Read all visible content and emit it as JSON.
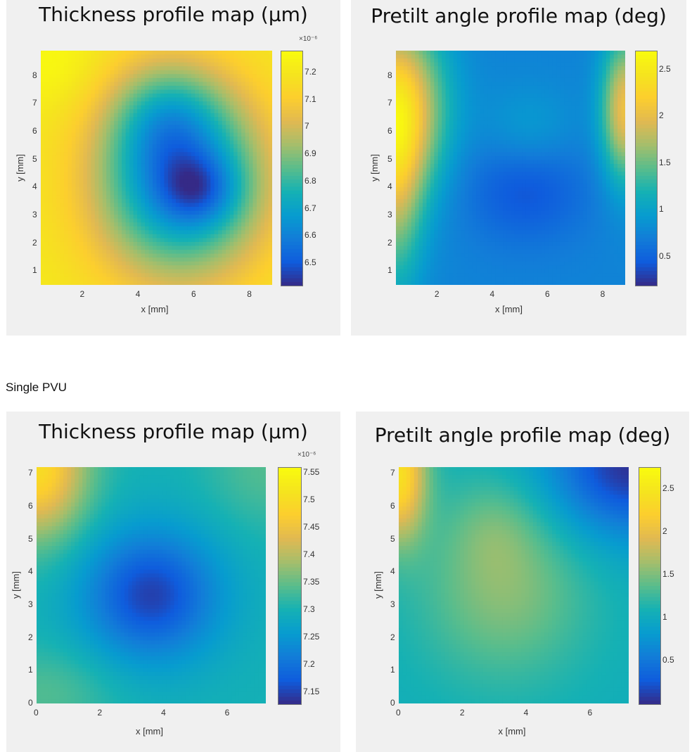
{
  "section_label": "Single PVU",
  "chart_data": [
    {
      "type": "heatmap",
      "title": "Thickness profile map (µm)",
      "xlabel": "x [mm]",
      "ylabel": "y [mm]",
      "xlim": [
        0.5,
        8.8
      ],
      "ylim": [
        0.5,
        8.9
      ],
      "xticks": [
        "2",
        "4",
        "6",
        "8"
      ],
      "xtick_values": [
        2,
        4,
        6,
        8
      ],
      "yticks": [
        "1",
        "2",
        "3",
        "4",
        "5",
        "6",
        "7",
        "8"
      ],
      "ytick_values": [
        1,
        2,
        3,
        4,
        5,
        6,
        7,
        8
      ],
      "colorbar": {
        "range": [
          6.42,
          7.28
        ],
        "ticks": [
          "6.5",
          "6.6",
          "6.7",
          "6.8",
          "6.9",
          "7",
          "7.1",
          "7.2"
        ],
        "tick_values": [
          6.5,
          6.6,
          6.7,
          6.8,
          6.9,
          7.0,
          7.1,
          7.2
        ],
        "exponent": "×10⁻⁶"
      },
      "field": {
        "base": 7.22,
        "blobs": [
          {
            "x": 5.5,
            "y": 4.2,
            "sx": 2.2,
            "sy": 2.5,
            "amp": -0.62
          },
          {
            "x": 5.0,
            "y": 6.6,
            "sx": 1.4,
            "sy": 1.4,
            "amp": -0.2
          },
          {
            "x": 6.2,
            "y": 3.9,
            "sx": 1.0,
            "sy": 0.9,
            "amp": -0.18
          },
          {
            "x": 1.0,
            "y": 8.5,
            "sx": 1.2,
            "sy": 1.2,
            "amp": 0.06
          }
        ]
      }
    },
    {
      "type": "heatmap",
      "title": "Pretilt angle profile map (deg)",
      "xlabel": "x [mm]",
      "ylabel": "y [mm]",
      "xlim": [
        0.5,
        8.8
      ],
      "ylim": [
        0.5,
        8.9
      ],
      "xticks": [
        "2",
        "4",
        "6",
        "8"
      ],
      "xtick_values": [
        2,
        4,
        6,
        8
      ],
      "yticks": [
        "1",
        "2",
        "3",
        "4",
        "5",
        "6",
        "7",
        "8"
      ],
      "ytick_values": [
        1,
        2,
        3,
        4,
        5,
        6,
        7,
        8
      ],
      "colorbar": {
        "range": [
          0.2,
          2.7
        ],
        "ticks": [
          "0.5",
          "1",
          "1.5",
          "2",
          "2.5"
        ],
        "tick_values": [
          0.5,
          1.0,
          1.5,
          2.0,
          2.5
        ],
        "exponent": ""
      },
      "field": {
        "base": 0.75,
        "blobs": [
          {
            "x": 0.5,
            "y": 6.8,
            "sx": 1.2,
            "sy": 2.2,
            "amp": 1.6
          },
          {
            "x": 0.5,
            "y": 3.5,
            "sx": 0.7,
            "sy": 2.5,
            "amp": 0.7
          },
          {
            "x": 8.8,
            "y": 6.8,
            "sx": 0.6,
            "sy": 1.8,
            "amp": 1.3
          },
          {
            "x": 5.2,
            "y": 4.0,
            "sx": 1.6,
            "sy": 1.4,
            "amp": -0.35
          },
          {
            "x": 5.3,
            "y": 6.0,
            "sx": 1.2,
            "sy": 1.1,
            "amp": 0.25
          }
        ]
      }
    },
    {
      "type": "heatmap",
      "title": "Thickness profile map (µm)",
      "xlabel": "x [mm]",
      "ylabel": "y [mm]",
      "xlim": [
        0,
        7.2
      ],
      "ylim": [
        0,
        7.2
      ],
      "xticks": [
        "0",
        "2",
        "4",
        "6"
      ],
      "xtick_values": [
        0,
        2,
        4,
        6
      ],
      "yticks": [
        "0",
        "1",
        "2",
        "3",
        "4",
        "5",
        "6",
        "7"
      ],
      "ytick_values": [
        0,
        1,
        2,
        3,
        4,
        5,
        6,
        7
      ],
      "colorbar": {
        "range": [
          7.13,
          7.56
        ],
        "ticks": [
          "7.15",
          "7.2",
          "7.25",
          "7.3",
          "7.35",
          "7.4",
          "7.45",
          "7.5",
          "7.55"
        ],
        "tick_values": [
          7.15,
          7.2,
          7.25,
          7.3,
          7.35,
          7.4,
          7.45,
          7.5,
          7.55
        ],
        "exponent": "×10⁻⁶"
      },
      "field": {
        "base": 7.3,
        "blobs": [
          {
            "x": 3.6,
            "y": 3.3,
            "sx": 1.5,
            "sy": 1.4,
            "amp": -0.15
          },
          {
            "x": 0.0,
            "y": 7.2,
            "sx": 1.1,
            "sy": 1.5,
            "amp": 0.2
          },
          {
            "x": 7.2,
            "y": 7.2,
            "sx": 1.3,
            "sy": 1.3,
            "amp": 0.04
          },
          {
            "x": 0.3,
            "y": 0.3,
            "sx": 1.5,
            "sy": 1.0,
            "amp": 0.04
          }
        ]
      }
    },
    {
      "type": "heatmap",
      "title": "Pretilt angle profile map (deg)",
      "xlabel": "x [mm]",
      "ylabel": "y [mm]",
      "xlim": [
        0,
        7.2
      ],
      "ylim": [
        0,
        7.2
      ],
      "xticks": [
        "0",
        "2",
        "4",
        "6"
      ],
      "xtick_values": [
        0,
        2,
        4,
        6
      ],
      "yticks": [
        "0",
        "1",
        "2",
        "3",
        "4",
        "5",
        "6",
        "7"
      ],
      "ytick_values": [
        0,
        1,
        2,
        3,
        4,
        5,
        6,
        7
      ],
      "colorbar": {
        "range": [
          0.0,
          2.75
        ],
        "ticks": [
          "0.5",
          "1",
          "1.5",
          "2",
          "2.5"
        ],
        "tick_values": [
          0.5,
          1.0,
          1.5,
          2.0,
          2.5
        ],
        "exponent": ""
      },
      "field": {
        "base": 1.05,
        "blobs": [
          {
            "x": 3.3,
            "y": 3.5,
            "sx": 1.8,
            "sy": 1.9,
            "amp": 0.5
          },
          {
            "x": 3.0,
            "y": 5.4,
            "sx": 1.0,
            "sy": 1.0,
            "amp": 0.2
          },
          {
            "x": 0.0,
            "y": 7.0,
            "sx": 0.6,
            "sy": 1.4,
            "amp": 1.35
          },
          {
            "x": 7.2,
            "y": 7.2,
            "sx": 1.8,
            "sy": 1.5,
            "amp": -1.0
          }
        ]
      }
    }
  ]
}
